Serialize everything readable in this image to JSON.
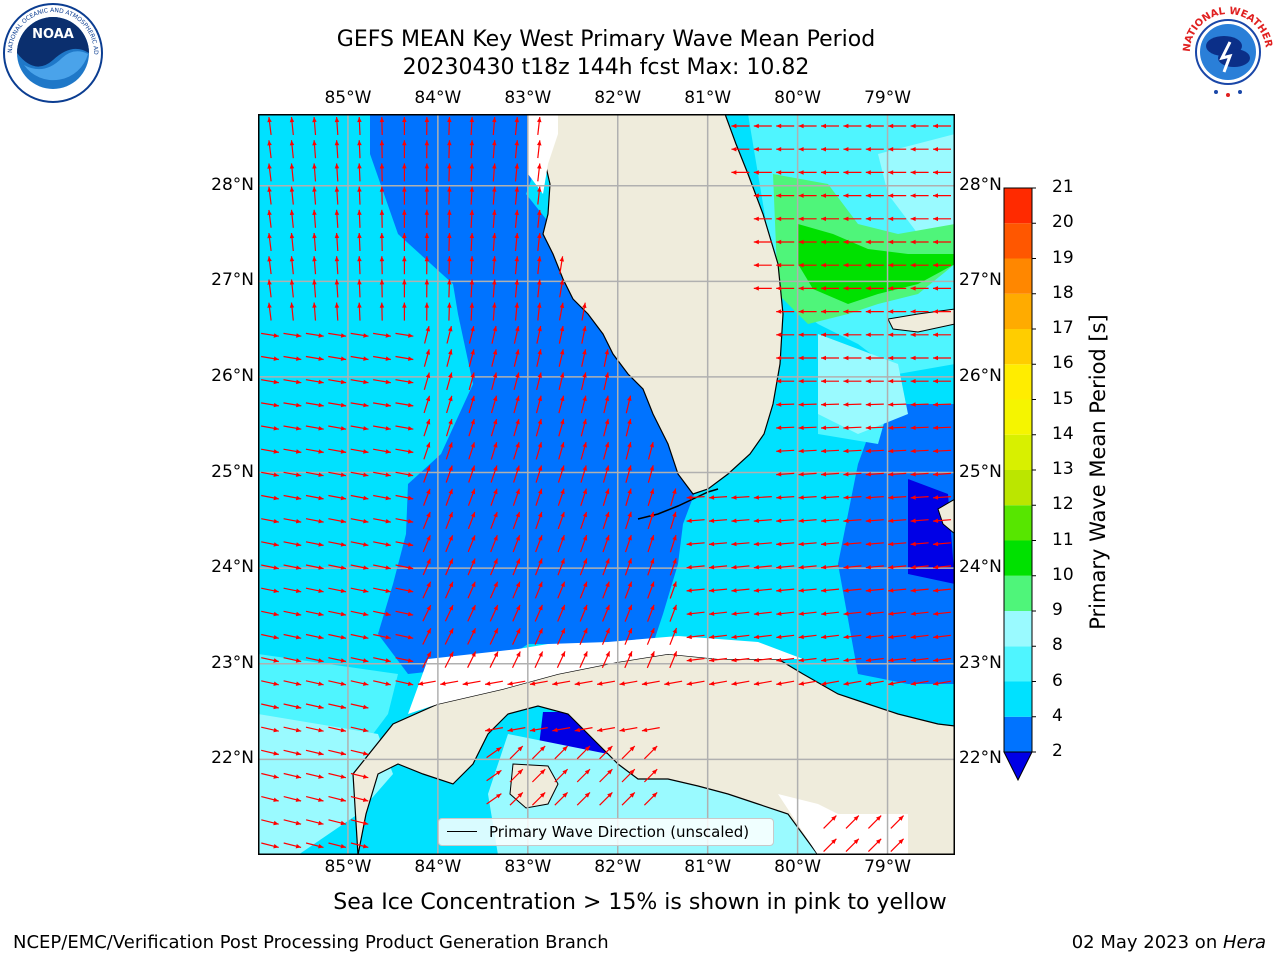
{
  "title": {
    "line1": "GEFS MEAN Key West Primary Wave Mean Period",
    "line2": "20230430 t18z 144h fcst   Max: 10.82"
  },
  "logos": {
    "noaa_text": "NOAA",
    "noaa_ring": "NATIONAL OCEANIC AND ATMOSPHERIC ADMINISTRATION · U.S. DEPARTMENT OF COMMERCE",
    "nws_ring": "NATIONAL WEATHER SERVICE"
  },
  "map": {
    "lon_labels": [
      "85°W",
      "84°W",
      "83°W",
      "82°W",
      "81°W",
      "80°W",
      "79°W"
    ],
    "lat_labels": [
      "28°N",
      "27°N",
      "26°N",
      "25°N",
      "24°N",
      "23°N",
      "22°N"
    ],
    "extent": {
      "lon_min": -86.0,
      "lon_max": -78.25,
      "lat_min": 21.0,
      "lat_max": 28.75
    },
    "legend_label": "Primary Wave Direction (unscaled)",
    "arrow_color": "#ff0000",
    "land_color": "#efecdc"
  },
  "colorbar": {
    "title": "Primary Wave Mean Period [s]",
    "tick_labels": [
      "2",
      "4",
      "6",
      "8",
      "9",
      "10",
      "11",
      "12",
      "13",
      "14",
      "15",
      "16",
      "17",
      "18",
      "19",
      "20",
      "21"
    ],
    "colors": [
      "#0073ff",
      "#00e1ff",
      "#4ff5ff",
      "#9afaff",
      "#4ff57a",
      "#00e100",
      "#57e600",
      "#bbe600",
      "#d8f000",
      "#f5f500",
      "#ffed00",
      "#ffcd00",
      "#ffab00",
      "#ff8700",
      "#ff5700",
      "#ff2a00"
    ],
    "under_color": "#0000e6"
  },
  "subtitle": "Sea Ice Concentration > 15% is shown in pink to yellow",
  "footer": {
    "left": "NCEP/EMC/Verification Post Processing Product Generation Branch",
    "date": "02 May 2023 on ",
    "host": "Hera"
  }
}
